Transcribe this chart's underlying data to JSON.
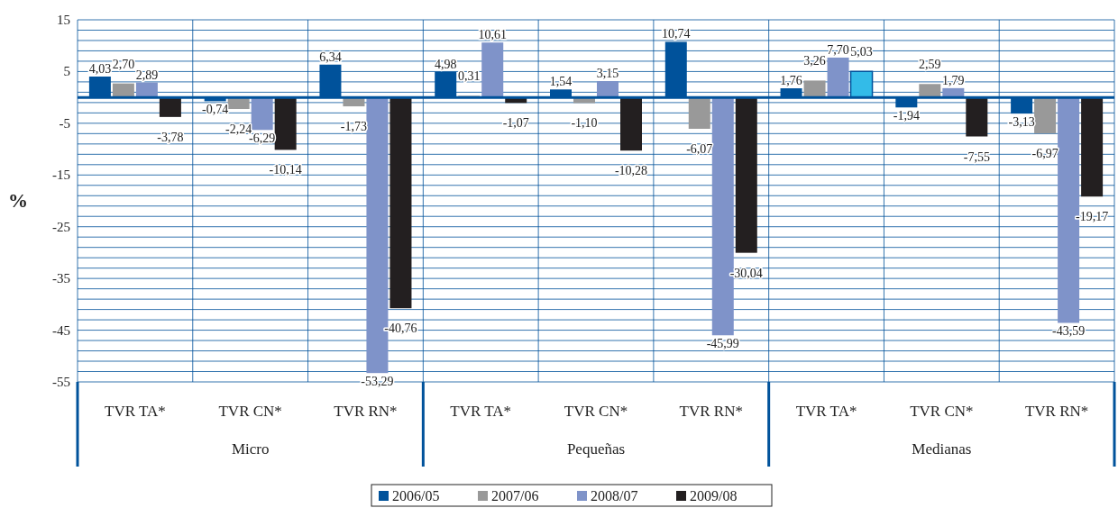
{
  "chart_data": {
    "type": "bar",
    "ylabel": "%",
    "categories": [
      "TVR TA*",
      "TVR CN*",
      "TVR RN*",
      "TVR TA*",
      "TVR CN*",
      "TVR RN*",
      "TVR TA*",
      "TVR CN*",
      "TVR RN*"
    ],
    "annotations": [
      "Micro",
      "Pequeñas",
      "Medianas"
    ],
    "series": [
      {
        "name": "2006/05",
        "color": "#00529b",
        "values": [
          4.03,
          -0.74,
          6.34,
          4.98,
          1.54,
          10.74,
          1.76,
          -1.94,
          -3.13
        ],
        "value_labels": [
          "4,03",
          "-0,74",
          "6,34",
          "4,98",
          "1,54",
          "10,74",
          "1,76",
          "-1,94",
          "-3,13"
        ]
      },
      {
        "name": "2007/06",
        "color": "#999999",
        "values": [
          2.7,
          -2.24,
          -1.73,
          0.31,
          -1.1,
          -6.07,
          3.26,
          2.59,
          -6.97
        ],
        "value_labels": [
          "2,70",
          "-2,24",
          "-1,73",
          "0,31",
          "-1,10",
          "-6,07",
          "3,26",
          "2,59",
          "-6,97"
        ]
      },
      {
        "name": "2008/07",
        "color": "#7f93c9",
        "values": [
          2.89,
          -6.29,
          -53.29,
          10.61,
          3.15,
          -45.99,
          7.7,
          1.79,
          -43.59
        ],
        "value_labels": [
          "2,89",
          "-6,29",
          "-53,29",
          "10,61",
          "3,15",
          "-45,99",
          "7,70",
          "1,79",
          "-43,59"
        ]
      },
      {
        "name": "2009/08",
        "color": "#231f20",
        "colors": [
          "#231f20",
          "#231f20",
          "#231f20",
          "#231f20",
          "#231f20",
          "#231f20",
          "#33bbe8",
          "#231f20",
          "#231f20"
        ],
        "values": [
          -3.78,
          -10.14,
          -40.76,
          -1.07,
          -10.28,
          -30.04,
          5.03,
          -7.55,
          -19.17
        ],
        "value_labels": [
          "-3,78",
          "-10,14",
          "-40,76",
          "-1,07",
          "-10,28",
          "-30,04",
          "5,03",
          "-7,55",
          "-19,17"
        ]
      }
    ],
    "ylim": [
      -55,
      15
    ],
    "yticks": [
      15,
      {
        "value": 13,
        "label": null
      },
      {
        "value": 11,
        "label": null
      },
      {
        "value": 9,
        "label": null
      },
      {
        "value": 7,
        "label": null
      },
      5,
      {
        "value": 3,
        "label": null
      },
      {
        "value": 1,
        "label": null
      },
      {
        "value": -1,
        "label": null
      },
      {
        "value": -3,
        "label": null
      },
      -5,
      {
        "value": -7,
        "label": null
      },
      {
        "value": -9,
        "label": null
      },
      {
        "value": -11,
        "label": null
      },
      {
        "value": -13,
        "label": null
      },
      -15,
      {
        "value": -17,
        "label": null
      },
      {
        "value": -19,
        "label": null
      },
      {
        "value": -21,
        "label": null
      },
      {
        "value": -23,
        "label": null
      },
      -25,
      {
        "value": -27,
        "label": null
      },
      {
        "value": -29,
        "label": null
      },
      {
        "value": -31,
        "label": null
      },
      {
        "value": -33,
        "label": null
      },
      -35,
      {
        "value": -37,
        "label": null
      },
      {
        "value": -39,
        "label": null
      },
      {
        "value": -41,
        "label": null
      },
      {
        "value": -43,
        "label": null
      },
      -45,
      {
        "value": -47,
        "label": null
      },
      {
        "value": -49,
        "label": null
      },
      {
        "value": -51,
        "label": null
      },
      {
        "value": -53,
        "label": null
      },
      -55
    ],
    "ref_lines": [
      {
        "axis": "y",
        "value": 0,
        "color": "#00529b"
      }
    ],
    "grid": true,
    "legend": "bottom"
  }
}
